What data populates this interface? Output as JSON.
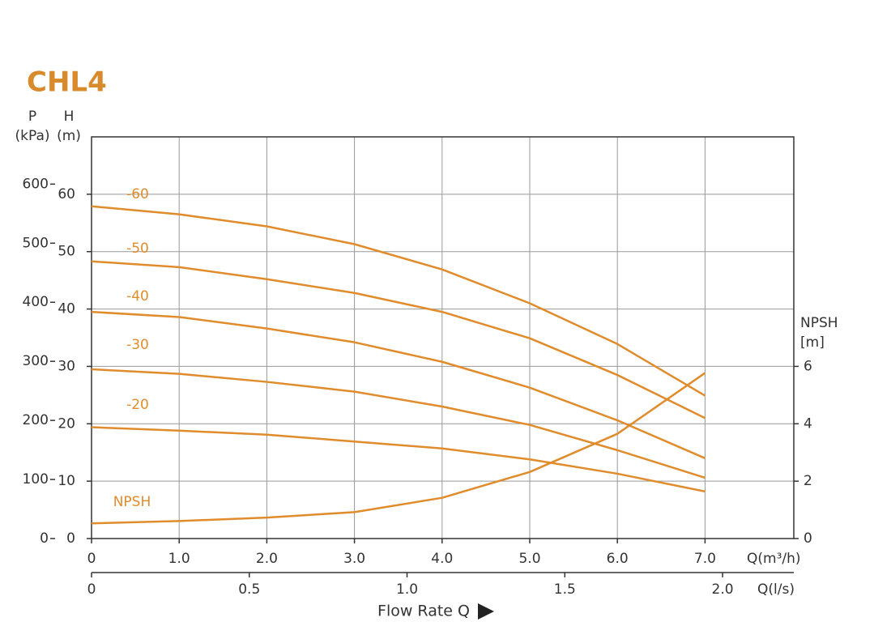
{
  "chart_data": {
    "type": "line",
    "title": "CHL4",
    "xlabel": "Q(m³/h)",
    "x2label": "Q(l/s)",
    "xtitle": "Flow Rate Q",
    "ylabel": "H",
    "yunit": "(m)",
    "y3label": "P",
    "y3unit": "(kPa)",
    "y2label": "NPSH",
    "y2unit": "[m]",
    "x": [
      0,
      1,
      2,
      3,
      4,
      5,
      6,
      7
    ],
    "xlim": [
      0,
      8
    ],
    "xticks": [
      0,
      {
        "value": 1,
        "label": "1.0"
      },
      {
        "value": 2,
        "label": "2.0"
      },
      {
        "value": 3,
        "label": "3.0"
      },
      {
        "value": 4,
        "label": "4.0"
      },
      {
        "value": 5,
        "label": "5.0"
      },
      {
        "value": 6,
        "label": "6.0"
      },
      {
        "value": 7,
        "label": "7.0"
      }
    ],
    "x2lim": [
      0,
      2.2222
    ],
    "x2ticks": [
      0,
      0.5,
      {
        "value": 1,
        "label": "1.0"
      },
      1.5,
      {
        "value": 2,
        "label": "2.0"
      }
    ],
    "ylim": [
      0,
      70
    ],
    "yticks": [
      0,
      10,
      20,
      30,
      40,
      50,
      60
    ],
    "y3lim": [
      0,
      680
    ],
    "y3ticks": [
      0,
      100,
      200,
      300,
      400,
      500,
      600
    ],
    "y2lim": [
      0,
      14
    ],
    "y2ticks": [
      0,
      2,
      4,
      6
    ],
    "grid": true,
    "series": [
      {
        "name": "-60",
        "color": "#e08c2c",
        "values": [
          57.9,
          56.5,
          54.4,
          51.3,
          46.9,
          41.0,
          33.9,
          24.9
        ]
      },
      {
        "name": "-50",
        "color": "#e08c2c",
        "values": [
          48.3,
          47.3,
          45.2,
          42.8,
          39.5,
          34.9,
          28.5,
          21.0
        ]
      },
      {
        "name": "-40",
        "color": "#e08c2c",
        "values": [
          39.5,
          38.6,
          36.6,
          34.2,
          30.8,
          26.3,
          20.6,
          14.0
        ]
      },
      {
        "name": "-30",
        "color": "#e08c2c",
        "values": [
          29.5,
          28.7,
          27.3,
          25.6,
          23.0,
          19.8,
          15.4,
          10.6
        ]
      },
      {
        "name": "-20",
        "color": "#e08c2c",
        "values": [
          19.4,
          18.8,
          18.1,
          16.9,
          15.7,
          13.8,
          11.3,
          8.2
        ]
      },
      {
        "name": "NPSH",
        "color": "#e08c2c",
        "axis": "y2",
        "values": [
          0.53,
          0.61,
          0.73,
          0.92,
          1.42,
          2.32,
          3.65,
          5.77
        ]
      }
    ]
  }
}
